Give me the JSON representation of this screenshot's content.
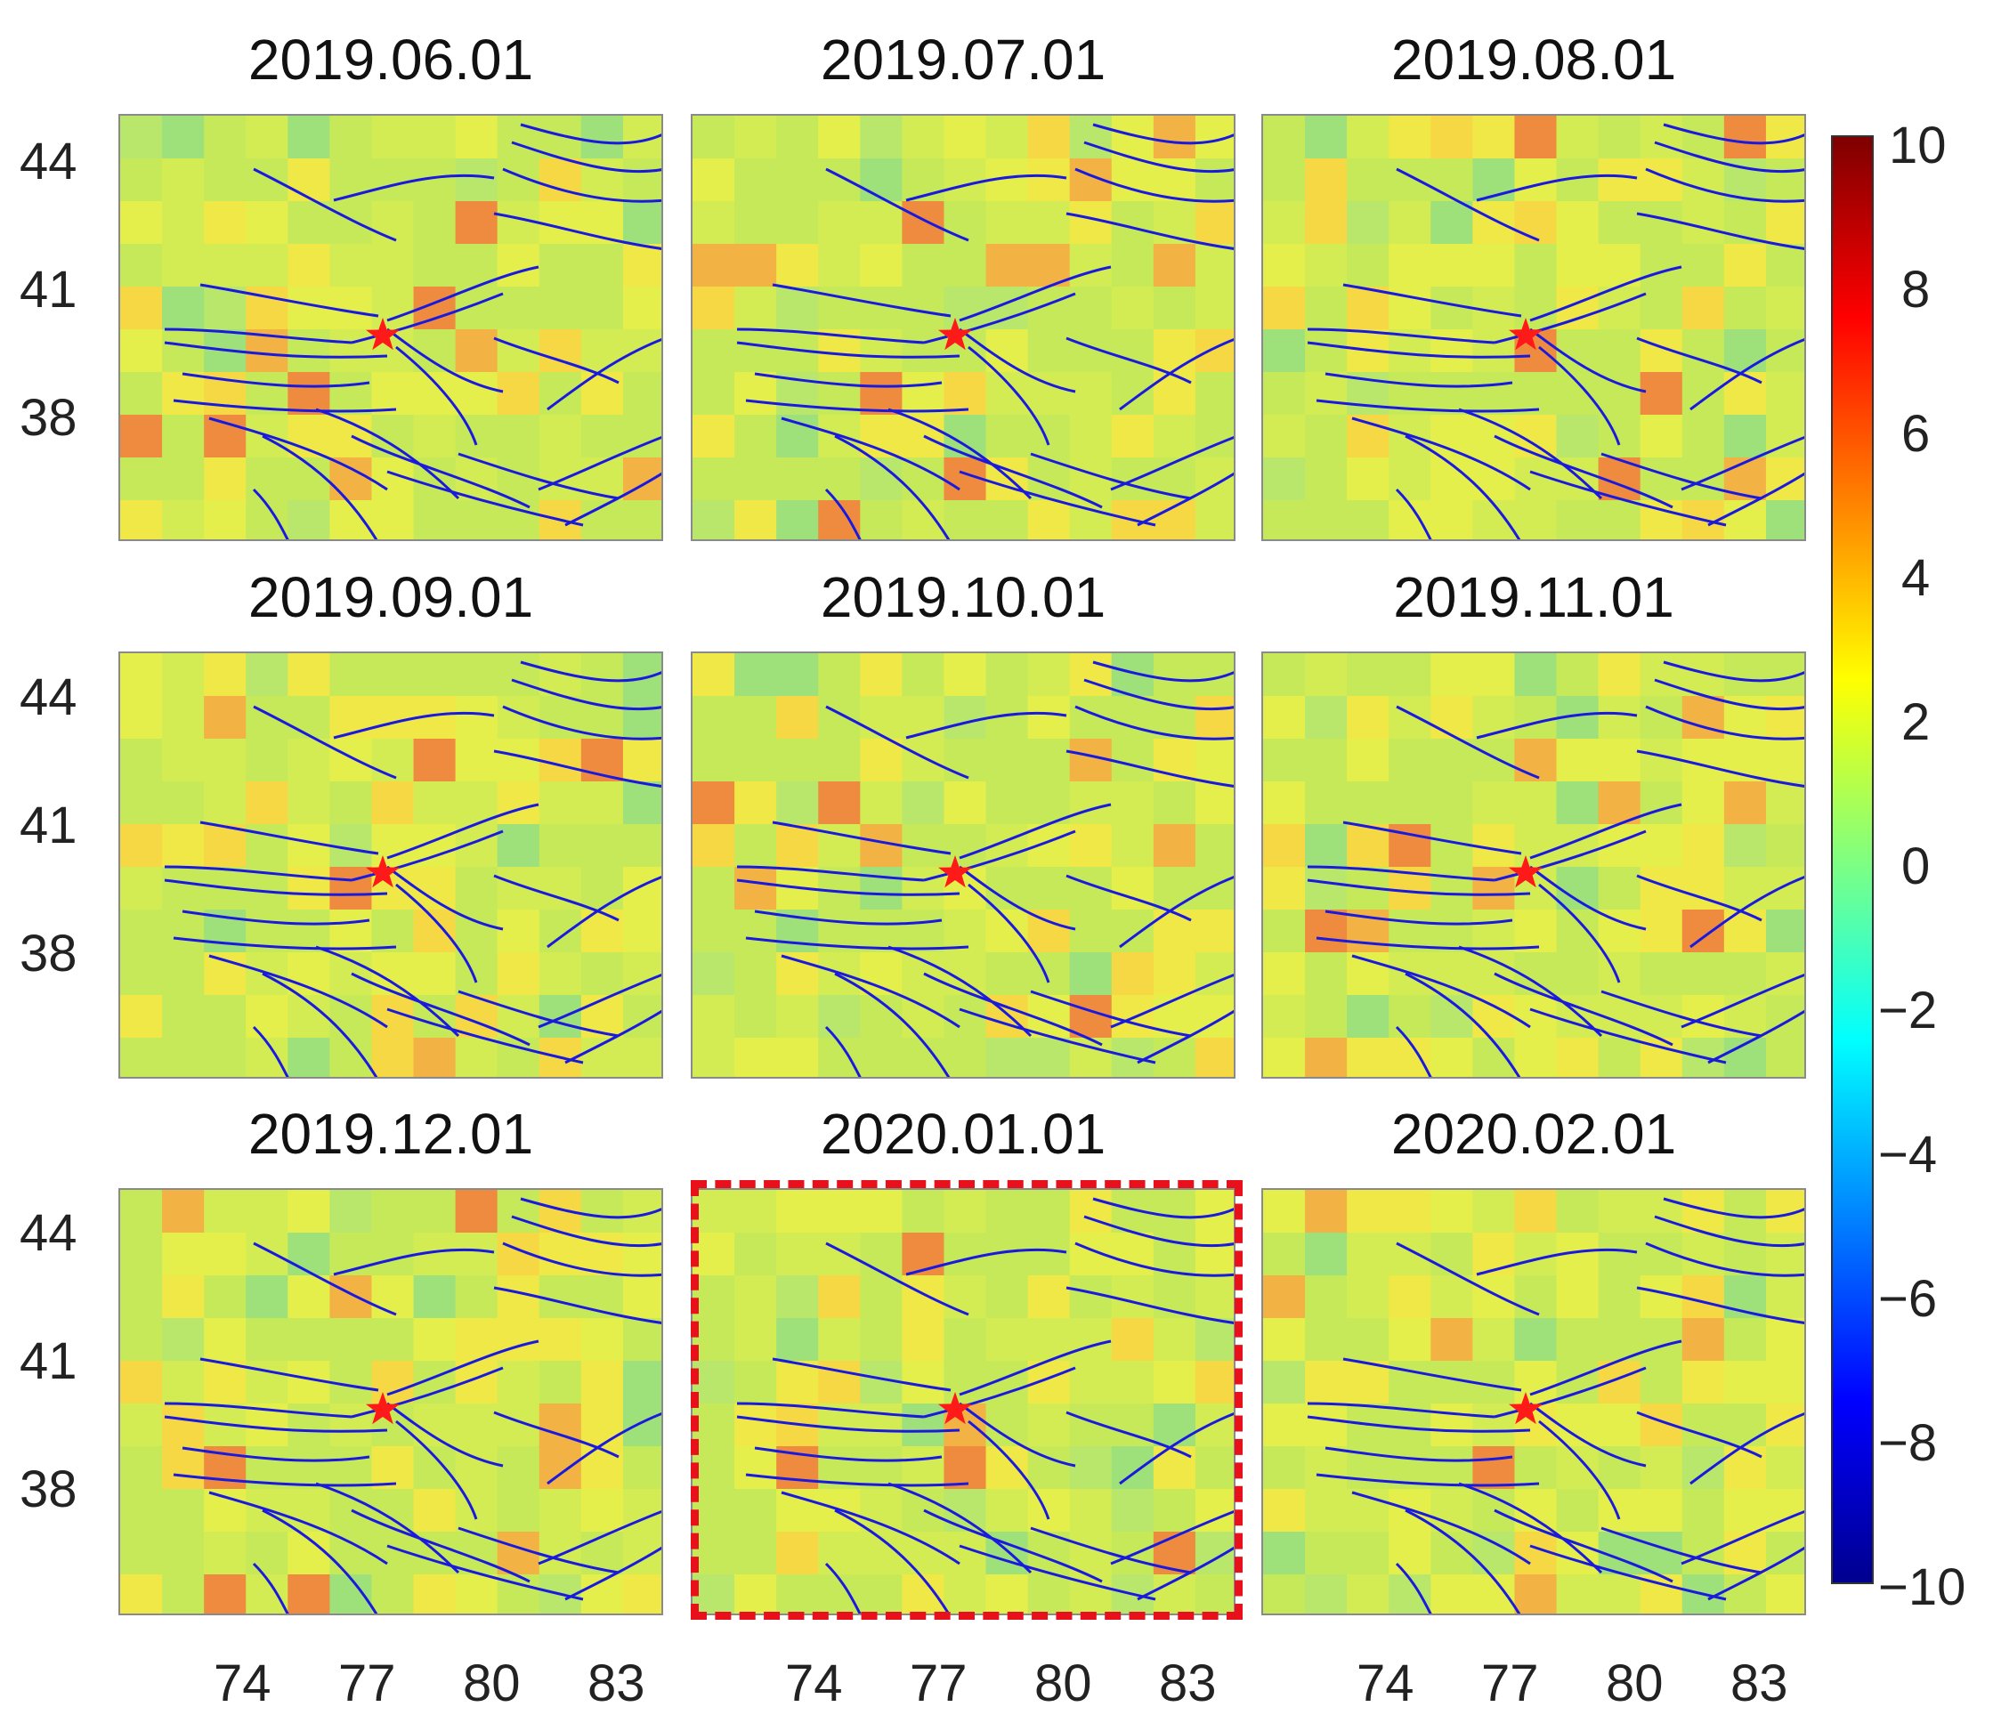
{
  "panels": [
    {
      "title": "2019.06.01"
    },
    {
      "title": "2019.07.01"
    },
    {
      "title": "2019.08.01"
    },
    {
      "title": "2019.09.01"
    },
    {
      "title": "2019.10.01"
    },
    {
      "title": "2019.11.01"
    },
    {
      "title": "2019.12.01"
    },
    {
      "title": "2020.01.01",
      "highlighted": true
    },
    {
      "title": "2020.02.01"
    }
  ],
  "axes": {
    "lat_ticks": [
      "44",
      "41",
      "38"
    ],
    "lon_ticks": [
      "74",
      "77",
      "80",
      "83"
    ]
  },
  "colorbar": {
    "ticks": [
      "10",
      "8",
      "6",
      "4",
      "2",
      "0",
      "−2",
      "−4",
      "−6",
      "−8",
      "−10"
    ],
    "range": [
      -10,
      10
    ],
    "colormap": "jet"
  },
  "colors": {
    "fault_lines": "#1a1adf",
    "epicenter_marker": "#ff1a1a",
    "highlight_border": "#e8101a"
  },
  "markers": {
    "epicenter": "red-star-icon"
  }
}
